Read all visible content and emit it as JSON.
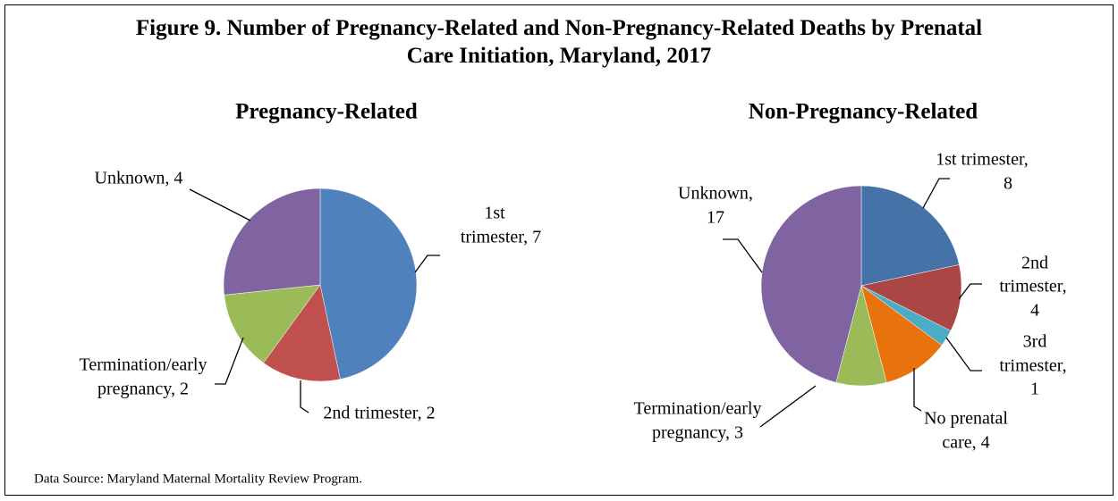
{
  "title": "Figure 9. Number of Pregnancy-Related and Non-Pregnancy-Related Deaths by Prenatal Care Initiation, Maryland, 2017",
  "source": "Data Source: Maryland Maternal Mortality Review Program.",
  "chart_data": [
    {
      "type": "pie",
      "title": "Pregnancy-Related",
      "labels": [
        [
          "1st",
          "trimester, 7"
        ],
        [
          "2nd trimester, 2"
        ],
        [
          "Termination/early",
          "pregnancy, 2"
        ],
        [
          "Unknown, 4"
        ]
      ],
      "values": [
        7,
        2,
        2,
        4
      ],
      "colors": [
        "#4f81bd",
        "#c0504d",
        "#9bbb59",
        "#8064a2"
      ]
    },
    {
      "type": "pie",
      "title": "Non-Pregnancy-Related",
      "labels": [
        [
          "1st trimester,",
          "8"
        ],
        [
          "2nd",
          "trimester,",
          "4"
        ],
        [
          "3rd",
          "trimester,",
          "1"
        ],
        [
          "No prenatal",
          "care, 4"
        ],
        [
          "Termination/early",
          "pregnancy, 3"
        ],
        [
          "Unknown,",
          "17"
        ]
      ],
      "values": [
        8,
        4,
        1,
        4,
        3,
        17
      ],
      "colors": [
        "#4572a7",
        "#aa4643",
        "#4bacc6",
        "#e8720c",
        "#9bbb59",
        "#8064a2"
      ]
    }
  ]
}
